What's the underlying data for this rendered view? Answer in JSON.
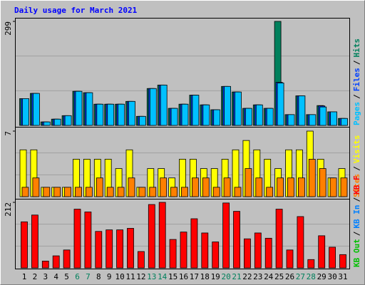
{
  "chart_data": [
    {
      "type": "bar",
      "title": "Daily usage for March 2021",
      "ylim": [
        0,
        299
      ],
      "yticks": [
        299
      ],
      "legend_separator": "/",
      "series": [
        {
          "name": "Hits",
          "color": "#00805c",
          "values": [
            77,
            92,
            10,
            18,
            28,
            98,
            94,
            61,
            61,
            61,
            69,
            26,
            106,
            116,
            49,
            61,
            87,
            59,
            45,
            112,
            96,
            49,
            59,
            49,
            299,
            31,
            85,
            31,
            57,
            39,
            20
          ]
        },
        {
          "name": "Files",
          "color": "#0040ff",
          "values": [
            77,
            92,
            10,
            18,
            28,
            98,
            94,
            61,
            61,
            61,
            69,
            26,
            106,
            116,
            49,
            61,
            87,
            59,
            45,
            112,
            96,
            49,
            59,
            49,
            124,
            31,
            85,
            31,
            56,
            39,
            20
          ]
        },
        {
          "name": "Pages",
          "color": "#00c0ff",
          "values": [
            77,
            92,
            10,
            18,
            28,
            98,
            94,
            61,
            61,
            61,
            69,
            26,
            106,
            116,
            49,
            61,
            87,
            59,
            45,
            112,
            96,
            49,
            59,
            49,
            122,
            31,
            85,
            31,
            53,
            39,
            20
          ]
        }
      ]
    },
    {
      "type": "bar",
      "ylim": [
        0,
        7
      ],
      "yticks": [
        7
      ],
      "series": [
        {
          "name": "Visits",
          "color": "#ffff00",
          "values": [
            5,
            5,
            1,
            1,
            1,
            4,
            4,
            4,
            4,
            3,
            5,
            1,
            3,
            3,
            2,
            4,
            4,
            3,
            3,
            4,
            5,
            6,
            5,
            4,
            3,
            5,
            5,
            7,
            4,
            2,
            3
          ]
        },
        {
          "name": "Sites",
          "color": "#ff8000",
          "values": [
            1,
            2,
            1,
            1,
            1,
            1,
            1,
            2,
            1,
            1,
            2,
            1,
            1,
            2,
            1,
            1,
            2,
            2,
            1,
            2,
            1,
            3,
            2,
            1,
            2,
            2,
            2,
            4,
            3,
            2,
            2
          ]
        }
      ]
    },
    {
      "type": "bar",
      "ylim": [
        0,
        212
      ],
      "yticks": [
        212
      ],
      "series": [
        {
          "name": "KB F",
          "color": "#ff0000",
          "values": [
            149,
            171,
            22,
            39,
            58,
            190,
            181,
            118,
            123,
            123,
            128,
            53,
            205,
            212,
            92,
            116,
            159,
            113,
            84,
            210,
            183,
            94,
            113,
            96,
            190,
            58,
            166,
            27,
            104,
            67,
            43
          ]
        }
      ],
      "extra_legend": [
        {
          "name": "KB In",
          "color": "#0080ff"
        },
        {
          "name": "KB Out",
          "color": "#00c000"
        }
      ],
      "categories": [
        "1",
        "2",
        "3",
        "4",
        "5",
        "6",
        "7",
        "8",
        "9",
        "10",
        "11",
        "12",
        "13",
        "14",
        "15",
        "16",
        "17",
        "18",
        "19",
        "20",
        "21",
        "22",
        "23",
        "24",
        "25",
        "26",
        "27",
        "28",
        "29",
        "30",
        "31"
      ],
      "weekend": [
        false,
        false,
        false,
        false,
        false,
        true,
        true,
        false,
        false,
        false,
        false,
        false,
        true,
        true,
        false,
        false,
        false,
        false,
        false,
        true,
        true,
        false,
        false,
        false,
        false,
        false,
        true,
        true,
        false,
        false,
        false
      ],
      "weekend_color": "#00805c"
    }
  ]
}
